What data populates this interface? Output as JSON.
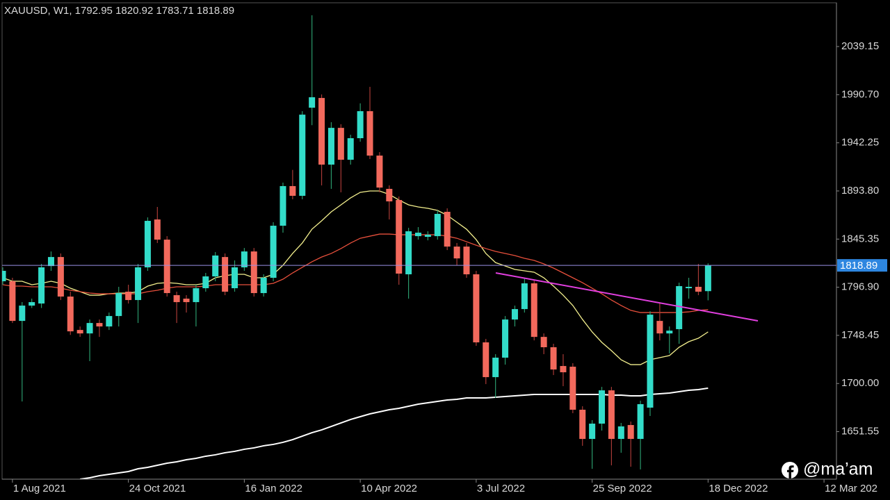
{
  "chart_data": {
    "type": "candlestick",
    "title": "XAUUSD, W1, 1792.95 1820.92 1783.71 1818.89",
    "watermark": "@ma’am",
    "up_color": "#33dcc9",
    "down_color": "#f2695c",
    "up_wick_color": "#2a9a6c",
    "down_wick_color": "#a83a36",
    "price_line_color": "#9a90e6",
    "price_box_color": "#2d86e0",
    "open": [
      1802.9,
      1802.9,
      1763.0,
      1778.4,
      1780.5,
      1818.2,
      1827.3,
      1787.5,
      1753.9,
      1750.4,
      1760.9,
      1757.4,
      1767.9,
      1792.4,
      1784.0,
      1816.9,
      1865.1,
      1844.8,
      1788.9,
      1785.4,
      1781.9,
      1795.9,
      1807.8,
      1827.3,
      1795.9,
      1816.9,
      1832.9,
      1791.0,
      1806.4,
      1858.8,
      1898.7,
      1888.9,
      1977.6,
      1987.4,
      1920.3,
      1957.3,
      1925.2,
      1946.9,
      1974.1,
      1929.4,
      1895.9,
      1884.7,
      1809.9,
      1848.3,
      1847.6,
      1848.3,
      1872.8,
      1837.8,
      1837.8,
      1809.9,
      1741.4,
      1706.4,
      1726.0,
      1764.4,
      1774.9,
      1800.8,
      1746.9,
      1736.5,
      1717.6,
      1716.9,
      1673.6,
      1644.2,
      1659.6,
      1693.1,
      1644.2,
      1658.2,
      1644.2,
      1675.7,
      1763.0,
      1750.4,
      1754.7,
      1795.9,
      1797.3,
      1792.95
    ],
    "high": [
      1816.9,
      1806.4,
      1781.9,
      1785.4,
      1820.4,
      1832.9,
      1830.9,
      1792.4,
      1757.4,
      1764.4,
      1764.4,
      1771.4,
      1797.3,
      1799.4,
      1820.4,
      1867.2,
      1877.7,
      1848.3,
      1792.4,
      1788.9,
      1799.4,
      1811.3,
      1832.3,
      1830.9,
      1823.9,
      1836.4,
      1836.4,
      1809.9,
      1862.3,
      1902.2,
      1915.0,
      1974.1,
      2070.6,
      1990.9,
      1963.0,
      1961.0,
      1950.4,
      1982.0,
      1998.6,
      1932.9,
      1899.4,
      1888.2,
      1856.7,
      1857.4,
      1853.2,
      1874.2,
      1876.3,
      1841.4,
      1841.4,
      1813.4,
      1744.9,
      1729.5,
      1767.9,
      1778.4,
      1806.4,
      1804.3,
      1750.4,
      1740.0,
      1729.5,
      1720.4,
      1677.1,
      1663.1,
      1696.6,
      1696.6,
      1660.3,
      1661.7,
      1682.7,
      1772.8,
      1780.5,
      1757.4,
      1801.5,
      1806.4,
      1820.4,
      1820.92
    ],
    "low": [
      1799.4,
      1760.9,
      1681.9,
      1776.0,
      1776.0,
      1813.4,
      1784.0,
      1748.9,
      1746.9,
      1722.5,
      1746.9,
      1753.9,
      1757.4,
      1780.5,
      1760.9,
      1813.4,
      1841.4,
      1787.5,
      1760.9,
      1771.4,
      1757.4,
      1792.4,
      1802.9,
      1788.9,
      1792.4,
      1813.4,
      1787.5,
      1787.5,
      1802.9,
      1851.8,
      1885.4,
      1885.4,
      1960.0,
      1899.4,
      1895.9,
      1892.4,
      1920.3,
      1943.4,
      1925.9,
      1892.4,
      1865.1,
      1799.4,
      1785.4,
      1844.8,
      1844.1,
      1844.8,
      1834.3,
      1818.9,
      1806.4,
      1737.9,
      1699.4,
      1685.5,
      1719.0,
      1757.4,
      1771.4,
      1743.4,
      1729.5,
      1708.5,
      1697.3,
      1670.1,
      1637.3,
      1614.1,
      1652.6,
      1617.6,
      1630.3,
      1616.2,
      1613.5,
      1667.3,
      1743.4,
      1730.2,
      1740.0,
      1785.4,
      1788.9,
      1783.71
    ],
    "close": [
      1813.4,
      1763.0,
      1778.4,
      1781.9,
      1816.9,
      1827.3,
      1787.5,
      1752.5,
      1750.4,
      1760.9,
      1757.4,
      1767.9,
      1791.0,
      1784.0,
      1816.9,
      1863.7,
      1844.8,
      1791.0,
      1781.9,
      1781.9,
      1795.9,
      1807.8,
      1828.8,
      1792.4,
      1816.9,
      1832.9,
      1791.0,
      1806.4,
      1858.8,
      1898.7,
      1888.9,
      1970.6,
      1988.1,
      1920.3,
      1957.3,
      1925.2,
      1946.9,
      1974.1,
      1929.4,
      1897.2,
      1883.3,
      1810.6,
      1853.2,
      1851.8,
      1849.7,
      1870.7,
      1837.8,
      1825.9,
      1809.9,
      1741.4,
      1706.4,
      1726.0,
      1764.4,
      1774.9,
      1800.8,
      1746.9,
      1736.5,
      1714.1,
      1711.3,
      1673.6,
      1644.2,
      1659.6,
      1693.1,
      1644.2,
      1656.8,
      1644.2,
      1679.2,
      1769.3,
      1750.4,
      1753.2,
      1798.0,
      1797.3,
      1792.4,
      1818.89
    ],
    "moving_averages": [
      {
        "color": "#f4f08e",
        "values": [
          1806.4,
          1802.9,
          1802.9,
          1799.4,
          1800.8,
          1802.9,
          1800.8,
          1795.9,
          1792.4,
          1788.9,
          1788.9,
          1790.3,
          1791.0,
          1791.0,
          1792.4,
          1798.0,
          1800.8,
          1801.5,
          1800.8,
          1799.4,
          1799.4,
          1800.8,
          1806.4,
          1808.5,
          1809.9,
          1809.9,
          1806.4,
          1806.4,
          1809.9,
          1819.0,
          1830.9,
          1841.4,
          1855.3,
          1863.7,
          1872.8,
          1879.8,
          1886.8,
          1892.4,
          1893.8,
          1893.8,
          1890.3,
          1884.7,
          1879.8,
          1877.7,
          1876.3,
          1874.2,
          1869.3,
          1862.3,
          1855.3,
          1844.8,
          1830.9,
          1821.7,
          1818.3,
          1814.8,
          1813.4,
          1812.0,
          1806.4,
          1798.0,
          1788.9,
          1778.5,
          1764.5,
          1751.9,
          1741.4,
          1733.0,
          1723.9,
          1719.0,
          1719.0,
          1723.9,
          1726.0,
          1728.1,
          1736.5,
          1742.1,
          1745.6,
          1751.9
        ]
      },
      {
        "color": "#e8503c",
        "values": [
          1799.4,
          1798.0,
          1798.0,
          1797.3,
          1797.3,
          1797.3,
          1795.9,
          1793.8,
          1792.4,
          1791.0,
          1790.3,
          1790.3,
          1790.3,
          1790.3,
          1790.3,
          1792.4,
          1793.8,
          1795.9,
          1797.3,
          1797.3,
          1797.3,
          1798.0,
          1799.4,
          1799.4,
          1799.4,
          1799.4,
          1799.4,
          1799.4,
          1800.8,
          1805.0,
          1811.3,
          1816.9,
          1822.5,
          1827.3,
          1830.9,
          1835.8,
          1841.4,
          1846.2,
          1848.3,
          1850.4,
          1850.4,
          1849.7,
          1849.7,
          1849.7,
          1849.7,
          1849.7,
          1848.3,
          1846.2,
          1842.7,
          1839.2,
          1835.8,
          1833.0,
          1830.9,
          1828.8,
          1826.0,
          1823.9,
          1820.4,
          1816.2,
          1811.3,
          1806.4,
          1801.5,
          1795.9,
          1790.3,
          1784.0,
          1778.5,
          1773.6,
          1771.4,
          1771.4,
          1771.4,
          1771.4,
          1771.4,
          1772.1,
          1773.6,
          1774.3
        ]
      },
      {
        "color": "#ffffff",
        "values": [
          null,
          null,
          null,
          null,
          null,
          null,
          null,
          null,
          1603.7,
          1605.1,
          1607.2,
          1608.6,
          1610.0,
          1611.4,
          1614.2,
          1615.6,
          1617.7,
          1619.8,
          1621.2,
          1623.3,
          1624.7,
          1626.8,
          1628.2,
          1630.3,
          1631.7,
          1633.8,
          1635.2,
          1637.3,
          1638.7,
          1640.8,
          1643.5,
          1647.0,
          1650.5,
          1653.3,
          1656.8,
          1660.3,
          1663.8,
          1666.6,
          1669.4,
          1671.5,
          1673.6,
          1675.0,
          1677.1,
          1679.2,
          1680.6,
          1682.0,
          1683.4,
          1684.1,
          1685.5,
          1685.5,
          1685.5,
          1686.2,
          1686.9,
          1687.6,
          1688.3,
          1689.0,
          1689.0,
          1689.0,
          1689.0,
          1689.0,
          1689.0,
          1689.0,
          1689.0,
          1688.3,
          1688.3,
          1687.6,
          1687.6,
          1689.0,
          1689.7,
          1690.4,
          1691.8,
          1693.2,
          1693.9,
          1695.3
        ]
      }
    ],
    "ylim": [
      1603.7,
      2083.2
    ],
    "yticks": [
      2039.15,
      {
        "value": 1990.7,
        "label": "1990.70"
      },
      1942.25,
      {
        "value": 1893.8,
        "label": "1893.80"
      },
      1845.35,
      {
        "value": 1796.9,
        "label": "1796.90"
      },
      1748.45,
      {
        "value": 1700,
        "label": "1700.00"
      },
      1651.55
    ],
    "xlim": [
      0,
      86
    ],
    "xticks": [
      {
        "value": 1,
        "label": "1 Aug 2021"
      },
      {
        "value": 13,
        "label": "24 Oct 2021"
      },
      {
        "value": 25,
        "label": "16 Jan 2022"
      },
      {
        "value": 37,
        "label": "10 Apr 2022"
      },
      {
        "value": 49,
        "label": "3 Jul 2022"
      },
      {
        "value": 61,
        "label": "25 Sep 2022"
      },
      {
        "value": 73,
        "label": "18 Dec 2022"
      },
      {
        "value": 85,
        "label": "12 Mar 202"
      }
    ]
  }
}
